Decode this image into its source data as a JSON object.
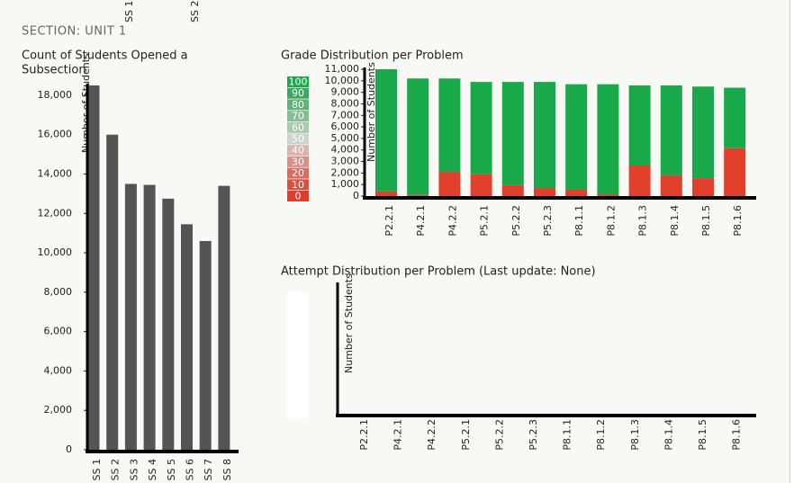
{
  "section": "SECTION: UNIT 1",
  "header_labels": [
    "SS 1",
    "SS 2"
  ],
  "chart_data": [
    {
      "type": "bar",
      "title": [
        "Count of Students Opened a",
        "Subsection"
      ],
      "ylabel": "Number of Students",
      "categories": [
        "SS 1",
        "SS 2",
        "SS 3",
        "SS 4",
        "SS 5",
        "SS 6",
        "SS 7",
        "SS 8"
      ],
      "values": [
        18500,
        16000,
        13500,
        13450,
        12750,
        11450,
        10600,
        13400
      ],
      "color": "#545454",
      "ylim": [
        0,
        18500
      ],
      "yticks": [
        0,
        {
          "value": 2000,
          "label": "2,000"
        },
        {
          "value": 4000,
          "label": "4,000"
        },
        {
          "value": 6000,
          "label": "6,000"
        },
        {
          "value": 8000,
          "label": "8,000"
        },
        {
          "value": 10000,
          "label": "10,000"
        },
        {
          "value": 12000,
          "label": "12,000"
        },
        {
          "value": 14000,
          "label": "14,000"
        },
        {
          "value": 16000,
          "label": "16,000"
        },
        {
          "value": 18000,
          "label": "18,000"
        }
      ]
    },
    {
      "type": "stacked_bar",
      "title": "Grade Distribution per Problem",
      "ylabel": "Number of Students",
      "categories": [
        "P2.2.1",
        "P4.2.1",
        "P4.2.2",
        "P5.2.1",
        "P5.2.2",
        "P5.2.3",
        "P8.1.1",
        "P8.1.2",
        "P8.1.3",
        "P8.1.4",
        "P8.1.5",
        "P8.1.6"
      ],
      "series": [
        {
          "color": "#e0402c",
          "values": [
            400,
            100,
            2100,
            1900,
            950,
            700,
            550,
            150,
            2650,
            1800,
            1550,
            4150
          ]
        },
        {
          "color": "#19a84a",
          "values": [
            10600,
            10100,
            8100,
            8000,
            8950,
            9200,
            9150,
            9550,
            6950,
            7800,
            7950,
            5250
          ]
        }
      ],
      "legend": [
        {
          "label": "100",
          "color": "#19a84a"
        },
        {
          "label": "90",
          "color": "#3ea860"
        },
        {
          "label": "80",
          "color": "#61b379"
        },
        {
          "label": "70",
          "color": "#84bf93"
        },
        {
          "label": "60",
          "color": "#a6cbad"
        },
        {
          "label": "50",
          "color": "#cdd3cb"
        },
        {
          "label": "40",
          "color": "#d9b3b0"
        },
        {
          "label": "30",
          "color": "#da9089"
        },
        {
          "label": "20",
          "color": "#db6c62"
        },
        {
          "label": "10",
          "color": "#dc5040"
        },
        {
          "label": "0",
          "color": "#dd3d2a"
        }
      ],
      "ylim": [
        0,
        11000
      ],
      "yticks": [
        0,
        {
          "value": 1000,
          "label": "1,000"
        },
        {
          "value": 2000,
          "label": "2,000"
        },
        {
          "value": 3000,
          "label": "3,000"
        },
        {
          "value": 4000,
          "label": "4,000"
        },
        {
          "value": 5000,
          "label": "5,000"
        },
        {
          "value": 6000,
          "label": "6,000"
        },
        {
          "value": 7000,
          "label": "7,000"
        },
        {
          "value": 8000,
          "label": "8,000"
        },
        {
          "value": 9000,
          "label": "9,000"
        },
        {
          "value": 10000,
          "label": "10,000"
        },
        {
          "value": 11000,
          "label": "11,000"
        }
      ]
    },
    {
      "type": "empty_bar",
      "title": "Attempt Distribution per Problem (Last update: None)",
      "ylabel": "Number of Students",
      "categories": [
        "P2.2.1",
        "P4.2.1",
        "P4.2.2",
        "P5.2.1",
        "P5.2.2",
        "P5.2.3",
        "P8.1.1",
        "P8.1.2",
        "P8.1.3",
        "P8.1.4",
        "P8.1.5",
        "P8.1.6"
      ]
    }
  ]
}
